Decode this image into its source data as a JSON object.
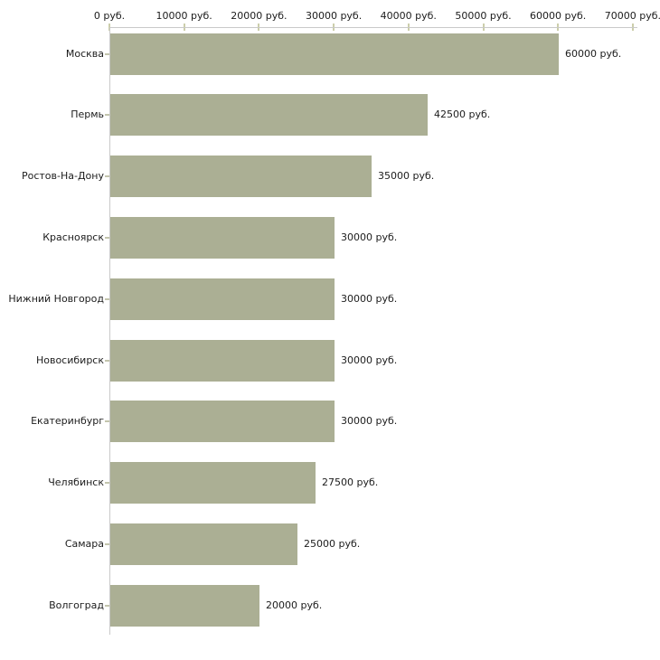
{
  "chart_data": {
    "type": "bar",
    "orientation": "horizontal",
    "title": "",
    "xlabel": "",
    "ylabel": "",
    "unit": "руб.",
    "categories": [
      "Москва",
      "Пермь",
      "Ростов-На-Дону",
      "Красноярск",
      "Нижний Новгород",
      "Новосибирск",
      "Екатеринбург",
      "Челябинск",
      "Самара",
      "Волгоград"
    ],
    "values": [
      60000,
      42500,
      35000,
      30000,
      30000,
      30000,
      30000,
      27500,
      25000,
      20000
    ],
    "value_labels": [
      "60000 руб.",
      "42500 руб.",
      "35000 руб.",
      "30000 руб.",
      "30000 руб.",
      "30000 руб.",
      "30000 руб.",
      "27500 руб.",
      "25000 руб.",
      "20000 руб."
    ],
    "x_axis": {
      "position": "top",
      "min": 0,
      "max": 70000,
      "ticks": [
        0,
        10000,
        20000,
        30000,
        40000,
        50000,
        60000,
        70000
      ],
      "tick_labels": [
        "0 руб.",
        "10000 руб.",
        "20000 руб.",
        "30000 руб.",
        "40000 руб.",
        "50000 руб.",
        "60000 руб.",
        "70000 руб."
      ]
    },
    "grid": false,
    "legend": false,
    "colors": {
      "bar": "#abaf94",
      "axis_line": "#c9c9c9",
      "axis_tick": "#ccceab",
      "label_tick": "#c3c5ad",
      "text": "#1c1c1c",
      "background": "#ffffff"
    }
  }
}
